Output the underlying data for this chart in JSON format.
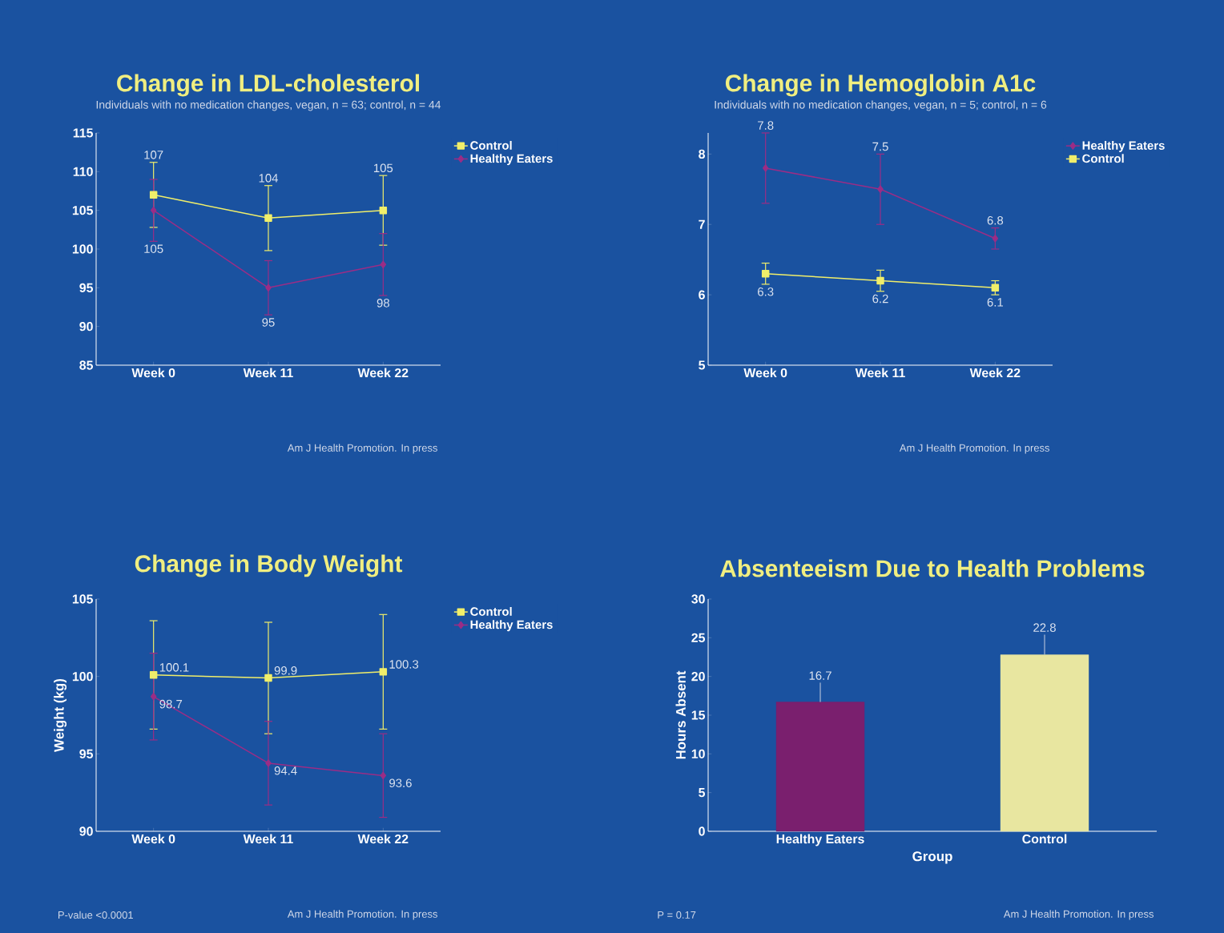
{
  "chart_data": [
    {
      "type": "line",
      "title": "Change in LDL-cholesterol",
      "subtitle": "Individuals with no medication changes, vegan, n = 63; control, n = 44",
      "categories": [
        "Week 0",
        "Week 11",
        "Week 22"
      ],
      "ylim": [
        85,
        115
      ],
      "yticks": [
        85,
        90,
        95,
        100,
        105,
        110,
        115
      ],
      "legend": "right",
      "data_labels": true,
      "series": [
        {
          "name": "Control",
          "color": "#f0ee6a",
          "marker": "square",
          "values": [
            107,
            104,
            105
          ],
          "errors": [
            4.2,
            4.2,
            4.5
          ]
        },
        {
          "name": "Healthy Eaters",
          "color": "#9b2d86",
          "marker": "diamond",
          "values": [
            105,
            95,
            98
          ],
          "errors": [
            4,
            3.5,
            4
          ]
        }
      ],
      "annotations": [
        "Am J Health Promotion. In press"
      ]
    },
    {
      "type": "line",
      "title": "Change in Hemoglobin A1c",
      "subtitle": "Individuals with no medication changes, vegan, n = 5; control, n = 6",
      "categories": [
        "Week 0",
        "Week 11",
        "Week 22"
      ],
      "ylim": [
        5,
        8.3
      ],
      "yticks": [
        5,
        6,
        7,
        8
      ],
      "legend": "right",
      "data_labels": true,
      "series": [
        {
          "name": "Healthy Eaters",
          "color": "#9b2d86",
          "marker": "diamond",
          "values": [
            7.8,
            7.5,
            6.8
          ],
          "errors": [
            0.5,
            0.5,
            0.15
          ]
        },
        {
          "name": "Control",
          "color": "#f0ee6a",
          "marker": "square",
          "values": [
            6.3,
            6.2,
            6.1
          ],
          "errors": [
            0.15,
            0.15,
            0.1
          ]
        }
      ],
      "annotations": [
        "Am J Health Promotion. In press"
      ]
    },
    {
      "type": "line",
      "title": "Change in Body Weight",
      "ylabel": "Weight (kg)",
      "categories": [
        "Week 0",
        "Week 11",
        "Week 22"
      ],
      "ylim": [
        90,
        105
      ],
      "yticks": [
        90,
        95,
        100,
        105
      ],
      "legend": "right",
      "data_labels": true,
      "series": [
        {
          "name": "Control",
          "color": "#f0ee6a",
          "marker": "square",
          "values": [
            100.1,
            99.9,
            100.3
          ],
          "errors": [
            3.5,
            3.6,
            3.7
          ]
        },
        {
          "name": "Healthy Eaters",
          "color": "#9b2d86",
          "marker": "diamond",
          "values": [
            98.7,
            94.4,
            93.6
          ],
          "errors": [
            2.8,
            2.7,
            2.7
          ]
        }
      ],
      "annotations": [
        "P-value <0.0001",
        "Am J Health Promotion. In press"
      ]
    },
    {
      "type": "bar",
      "title": "Absenteeism Due to Health Problems",
      "xlabel": "Group",
      "ylabel": "Hours Absent",
      "categories": [
        "Healthy Eaters",
        "Control"
      ],
      "values": [
        16.7,
        22.8
      ],
      "colors": [
        "#7a1f6e",
        "#e8e6a0"
      ],
      "errors": [
        [
          16.7,
          19.2
        ],
        [
          22.8,
          25.4
        ]
      ],
      "ylim": [
        0,
        30
      ],
      "yticks": [
        0,
        5,
        10,
        15,
        20,
        25,
        30
      ],
      "data_labels": true,
      "annotations": [
        "P = 0.17",
        "Am J Health Promotion. In press"
      ]
    }
  ]
}
